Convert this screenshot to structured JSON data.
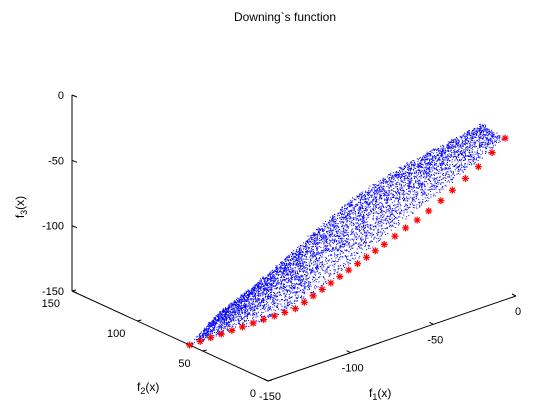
{
  "chart_data": {
    "type": "scatter",
    "projection": "3d",
    "title": "Downing`s function",
    "grid": false,
    "colors": {
      "cloud": "#0000ff",
      "front": "#ff0000",
      "axes": "#000000"
    },
    "axes": {
      "x": {
        "label_main": "f",
        "label_sub": "1",
        "label_tail": "(x)",
        "lim": [
          -150,
          0
        ],
        "ticks": [
          -150,
          -100,
          -50,
          0
        ],
        "tick_labels": [
          "-150",
          "-100",
          "-50",
          "0"
        ]
      },
      "y": {
        "label_main": "f",
        "label_sub": "2",
        "label_tail": "(x)",
        "lim": [
          0,
          150
        ],
        "ticks": [
          0,
          50,
          100,
          150
        ],
        "tick_labels": [
          "0",
          "50",
          "100",
          "150"
        ]
      },
      "z": {
        "label_main": "f",
        "label_sub": "3",
        "label_tail": "(x)",
        "lim": [
          -150,
          0
        ],
        "ticks": [
          0,
          -50,
          -100,
          -150
        ],
        "tick_labels": [
          "0",
          "-50",
          "-100",
          "-150"
        ]
      }
    },
    "series": [
      {
        "marker": "dot",
        "color": "#0000ff",
        "shape": "dense point cloud of dominated solutions",
        "u_range": [
          0,
          1
        ],
        "v_range": [
          0,
          1
        ],
        "points": 6000
      },
      {
        "marker": "asterisk",
        "color": "#ff0000",
        "points": [
          [
            -150.0,
            60.0,
            -150.0
          ],
          [
            -143.6,
            60.0,
            -150.0
          ],
          [
            -137.2,
            60.0,
            -150.0
          ],
          [
            -130.8,
            60.0,
            -150.0
          ],
          [
            -124.4,
            60.0,
            -150.0
          ],
          [
            -118.0,
            60.0,
            -150.0
          ],
          [
            -111.6,
            60.0,
            -150.0
          ],
          [
            -105.2,
            60.0,
            -150.0
          ],
          [
            -98.8,
            60.0,
            -150.0
          ],
          [
            -92.4,
            60.0,
            -150.0
          ],
          [
            -86.0,
            60.0,
            -150.0
          ],
          [
            -83.0,
            57.0,
            -145.0
          ],
          [
            -80.0,
            54.0,
            -140.0
          ],
          [
            -77.0,
            51.0,
            -135.0
          ],
          [
            -74.0,
            48.0,
            -130.0
          ],
          [
            -71.0,
            45.0,
            -125.0
          ],
          [
            -68.0,
            42.0,
            -120.0
          ],
          [
            -65.0,
            39.0,
            -115.0
          ],
          [
            -62.0,
            36.0,
            -110.0
          ],
          [
            -59.0,
            33.0,
            -105.0
          ],
          [
            -56.0,
            30.0,
            -100.0
          ],
          [
            -51.5,
            27.5,
            -94.5
          ],
          [
            -47.0,
            25.0,
            -89.0
          ],
          [
            -42.0,
            22.5,
            -84.0
          ],
          [
            -37.0,
            20.0,
            -78.0
          ],
          [
            -32.0,
            17.0,
            -71.0
          ],
          [
            -27.0,
            14.5,
            -64.0
          ],
          [
            -21.5,
            11.5,
            -56.0
          ],
          [
            -16.0,
            8.5,
            -48.0
          ],
          [
            -10.5,
            5.0,
            -38.0
          ],
          [
            -5.0,
            2.0,
            -28.0
          ]
        ]
      }
    ]
  }
}
